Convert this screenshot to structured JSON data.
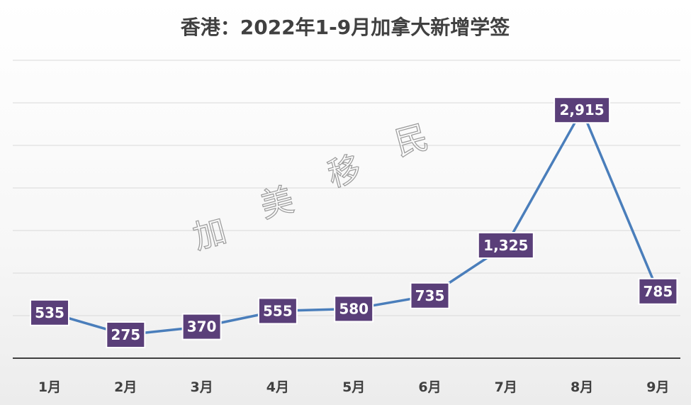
{
  "chart_data": {
    "type": "line",
    "title": "香港：2022年1-9月加拿大新增学签",
    "categories": [
      "1月",
      "2月",
      "3月",
      "4月",
      "5月",
      "6月",
      "7月",
      "8月",
      "9月"
    ],
    "series": [
      {
        "values": [
          535,
          275,
          370,
          555,
          580,
          735,
          1325,
          2915,
          785
        ],
        "labels": [
          "535",
          "275",
          "370",
          "555",
          "580",
          "735",
          "1,325",
          "2,915",
          "785"
        ]
      }
    ],
    "ylim": [
      0,
      3500
    ],
    "grid": true,
    "legend": "none",
    "colors": {
      "line": "#4a7ebb",
      "label_bg": "#5a3f79",
      "label_text": "#ffffff",
      "grid": "#d9d9d9"
    }
  },
  "watermark": {
    "text": "加美移民"
  }
}
